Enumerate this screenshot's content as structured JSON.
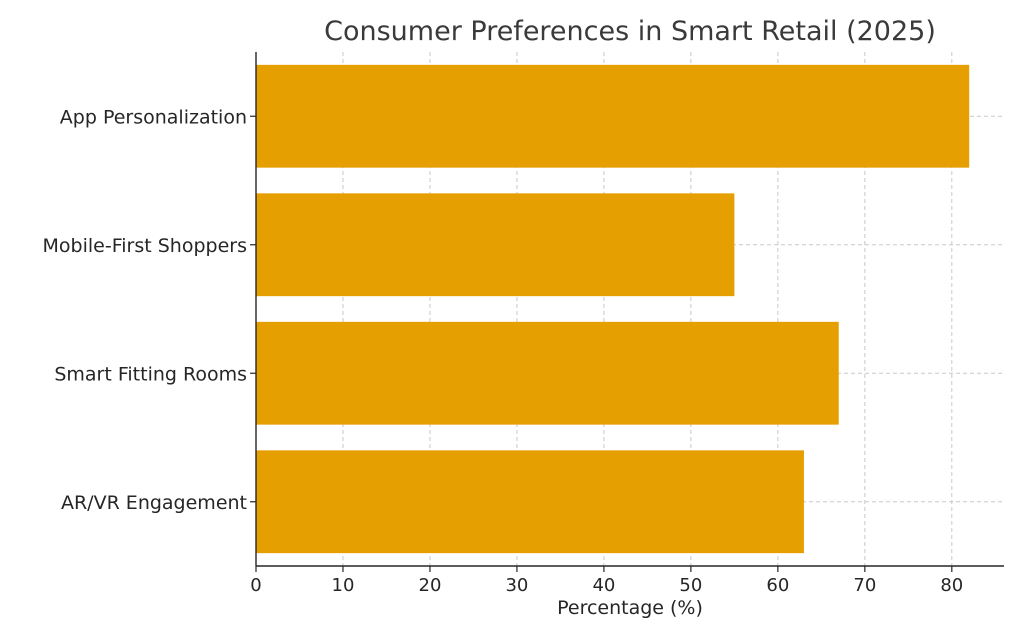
{
  "chart_data": {
    "type": "bar",
    "orientation": "horizontal",
    "title": "Consumer Preferences in Smart Retail (2025)",
    "xlabel": "Percentage (%)",
    "ylabel": "",
    "categories": [
      "App Personalization",
      "Mobile-First Shoppers",
      "Smart Fitting Rooms",
      "AR/VR Engagement"
    ],
    "values": [
      82,
      55,
      67,
      63
    ],
    "xlim": [
      0,
      86
    ],
    "xticks": [
      0,
      10,
      20,
      30,
      40,
      50,
      60,
      70,
      80
    ],
    "xtick_labels": [
      "0",
      "10",
      "20",
      "30",
      "40",
      "50",
      "60",
      "70",
      "80"
    ],
    "grid": true,
    "grid_style": "dashed",
    "bar_color": "#E69F00"
  }
}
